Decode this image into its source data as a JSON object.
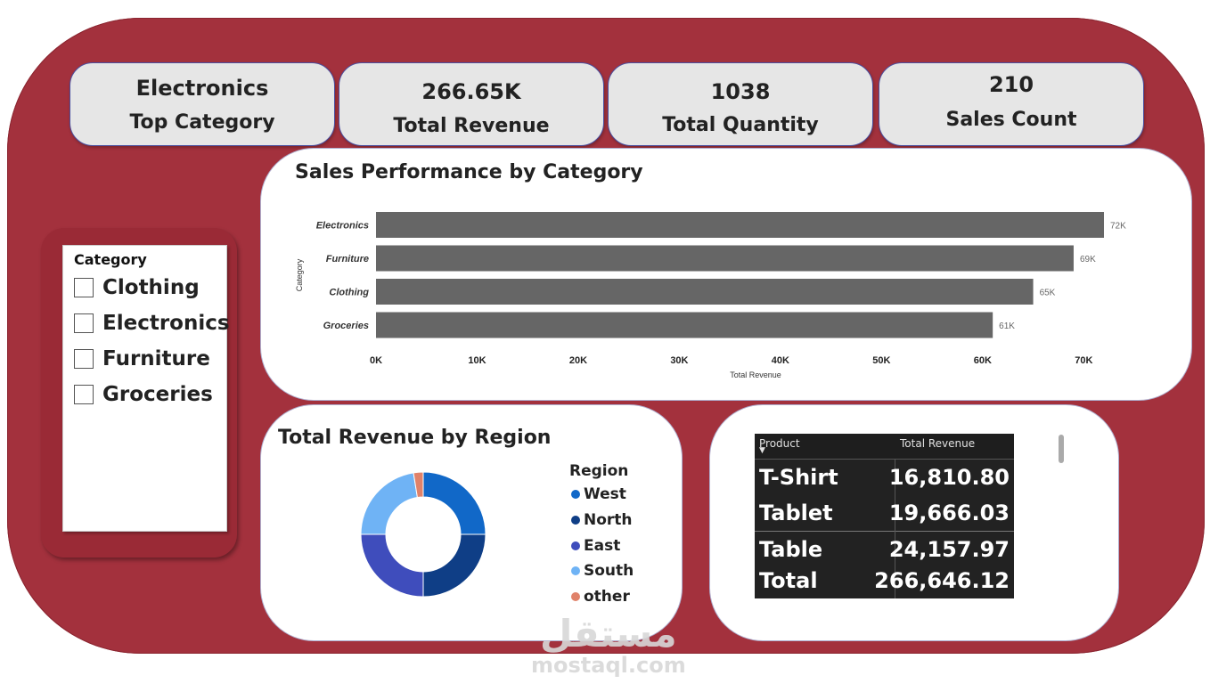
{
  "kpis": [
    {
      "value": "Electronics",
      "label": "Top Category"
    },
    {
      "value": "266.65K",
      "label": "Total Revenue"
    },
    {
      "value": "1038",
      "label": "Total Quantity"
    },
    {
      "value": "210",
      "label": "Sales Count"
    }
  ],
  "slicer": {
    "title": "Category",
    "items": [
      {
        "label": "Clothing"
      },
      {
        "label": "Electronics"
      },
      {
        "label": "Furniture"
      },
      {
        "label": "Groceries"
      }
    ]
  },
  "bar_chart_title": "Sales Performance by Category",
  "donut_title": "Total Revenue by Region",
  "chart_data": [
    {
      "type": "bar",
      "orientation": "horizontal",
      "title": "Sales Performance by Category",
      "categories": [
        "Electronics",
        "Furniture",
        "Clothing",
        "Groceries"
      ],
      "values": [
        72,
        69,
        65,
        61
      ],
      "value_labels": [
        "72K",
        "69K",
        "65K",
        "61K"
      ],
      "xlabel": "Total Revenue",
      "ylabel": "Category",
      "xticks": [
        "0K",
        "10K",
        "20K",
        "30K",
        "40K",
        "50K",
        "60K",
        "70K"
      ],
      "xlim": [
        0,
        72
      ],
      "bar_color": "#666666"
    },
    {
      "type": "pie",
      "variant": "donut",
      "title": "Total Revenue by Region",
      "legend_title": "Region",
      "labels": [
        "West",
        "North",
        "East",
        "South",
        "other"
      ],
      "values": [
        25,
        25,
        25,
        22.5,
        2.5
      ],
      "colors": [
        "#1168c8",
        "#0f3e86",
        "#3f4dbc",
        "#6fb3f5",
        "#e0826a"
      ]
    }
  ],
  "table": {
    "headers": [
      "Product",
      "Total Revenue"
    ],
    "rows": [
      {
        "product": "T-Shirt",
        "revenue": "16,810.80"
      },
      {
        "product": "Tablet",
        "revenue": "19,666.03"
      },
      {
        "product": "Table",
        "revenue": "24,157.97"
      }
    ],
    "total": {
      "product": "Total",
      "revenue": "266,646.12"
    },
    "sort_icon": "sort-down-icon"
  },
  "watermark": {
    "logo_text": "مستقل",
    "site": "mostaql.com"
  }
}
